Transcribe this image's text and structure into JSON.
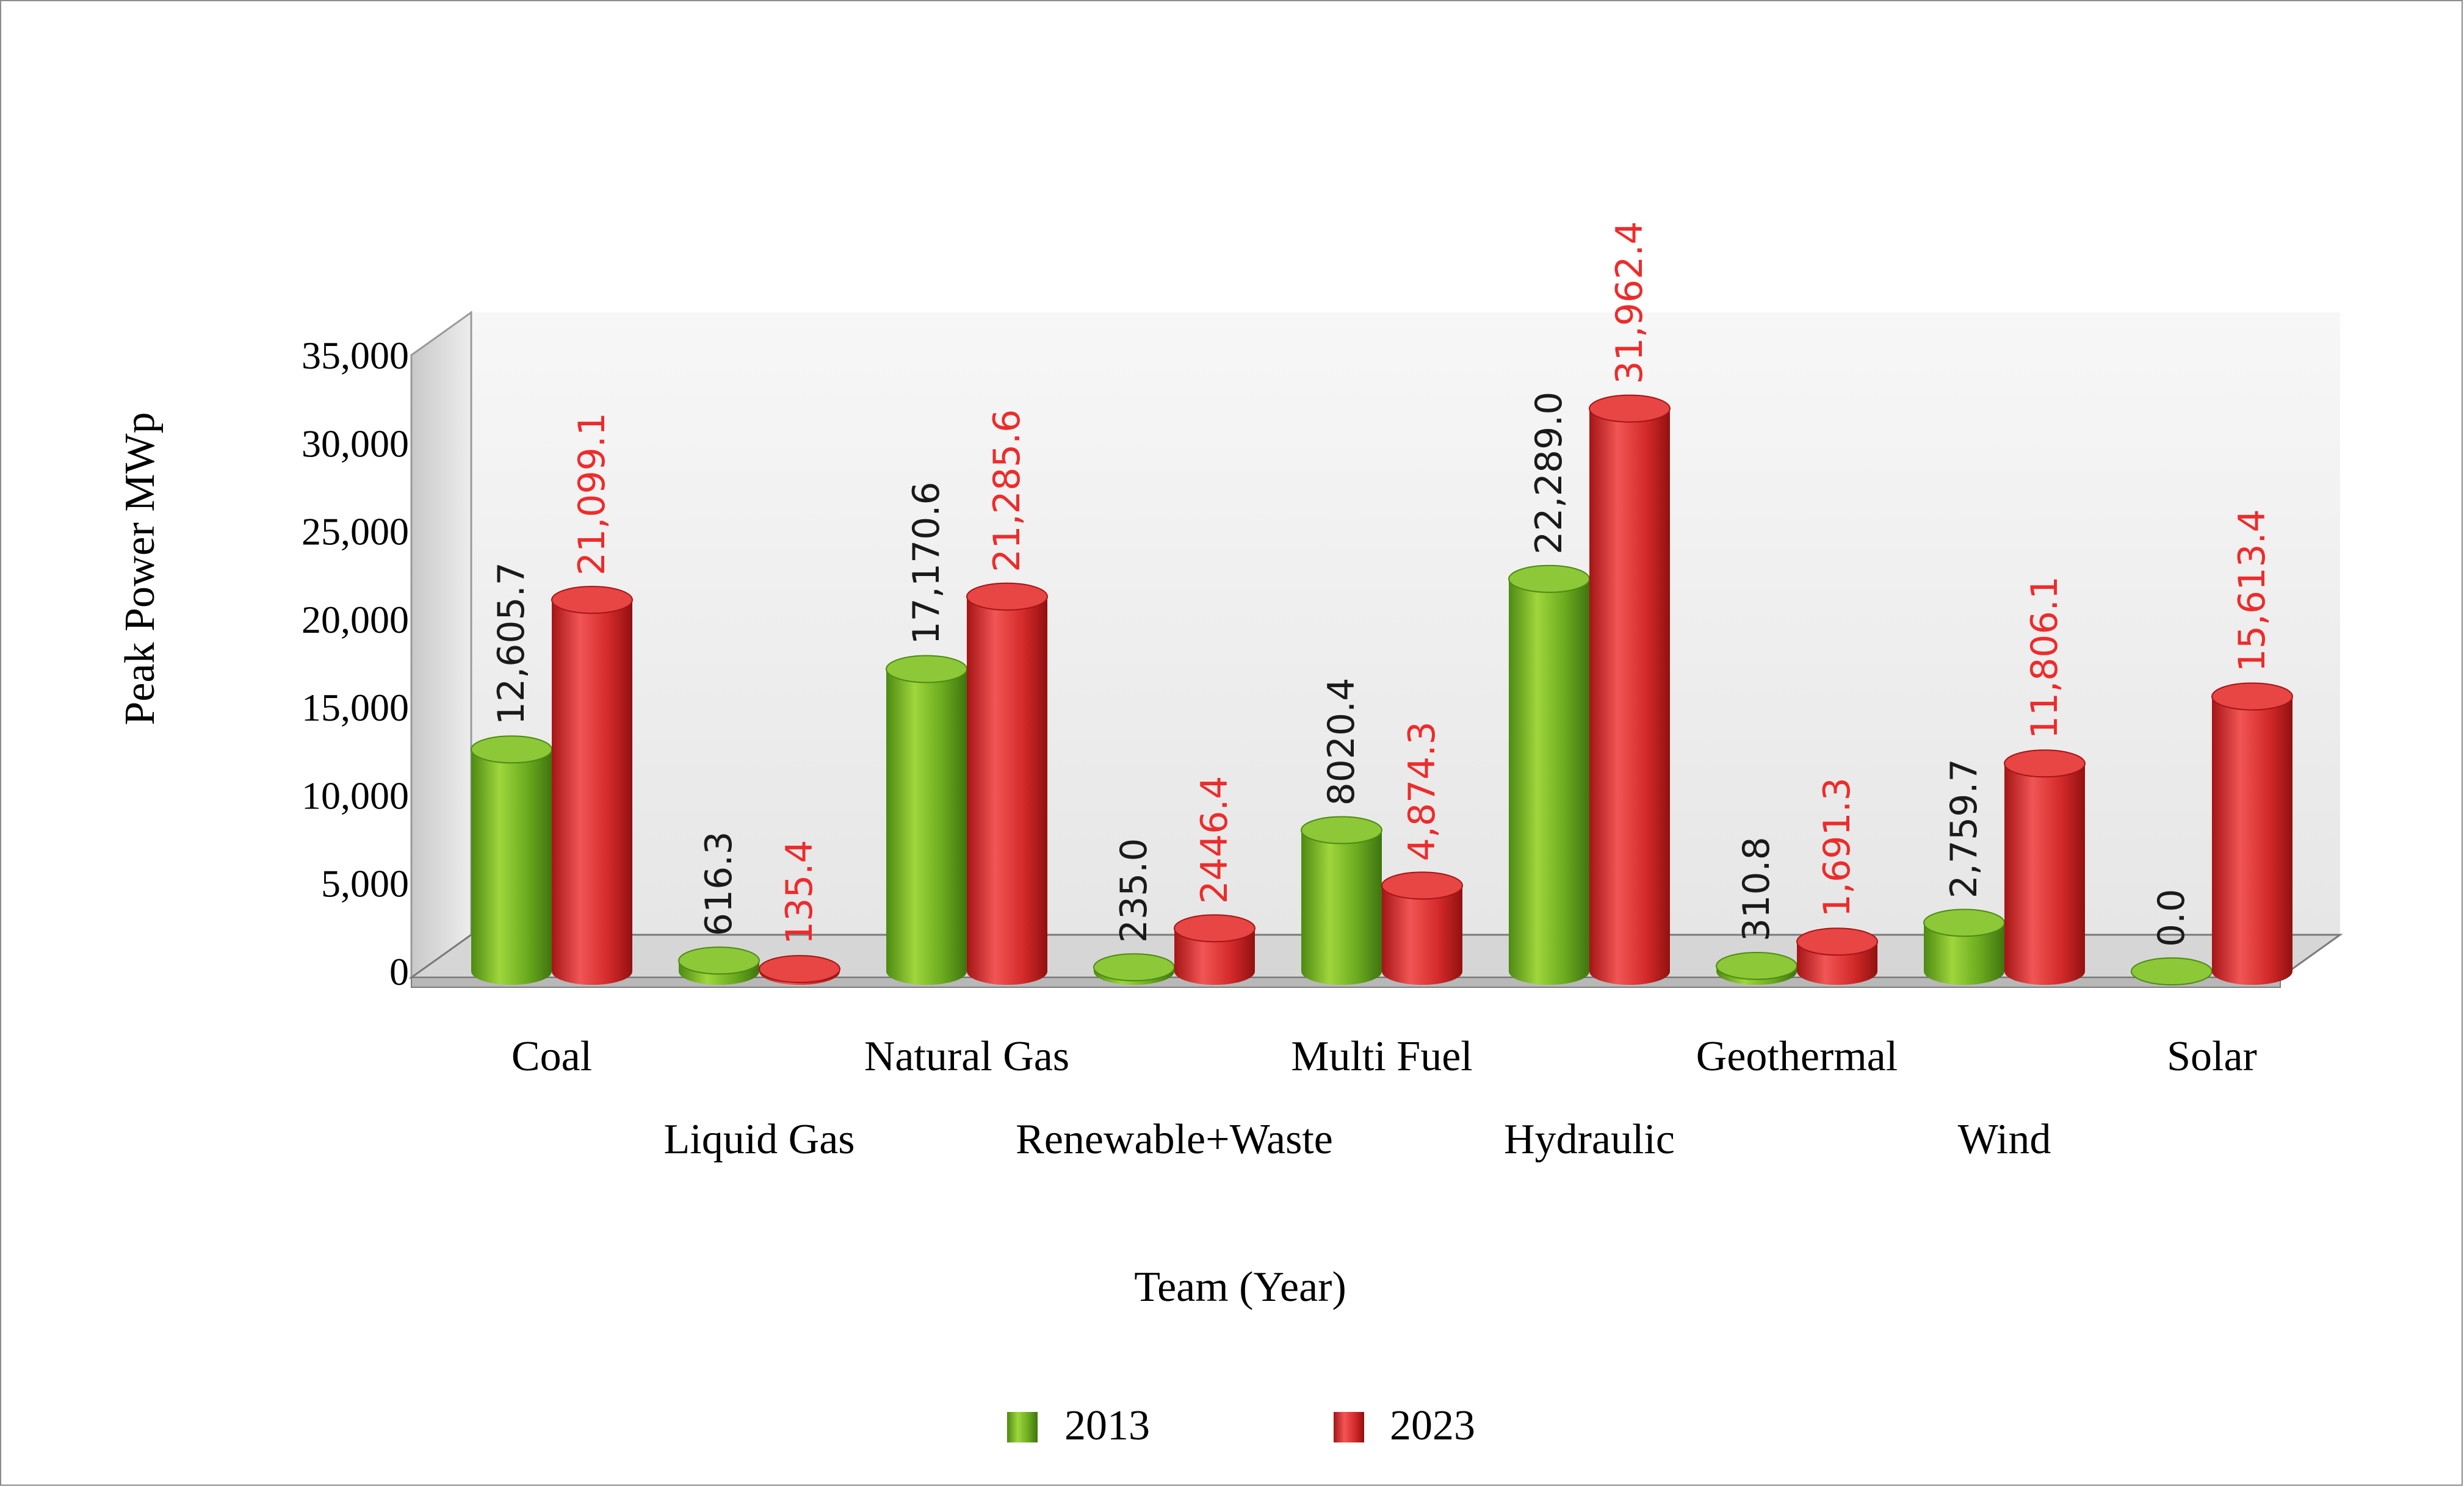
{
  "chart_data": {
    "type": "bar",
    "title": "",
    "ylabel": "Peak Power MWp",
    "xlabel": "Team (Year)",
    "ylim": [
      0,
      35000
    ],
    "yticks": [
      0,
      5000,
      10000,
      15000,
      20000,
      25000,
      30000,
      35000
    ],
    "ytick_labels": [
      "0",
      "5,000",
      "10,000",
      "15,000",
      "20,000",
      "25,000",
      "30,000",
      "35,000"
    ],
    "categories": [
      "Coal",
      "Liquid Gas",
      "Natural Gas",
      "Renewable+Waste",
      "Multi Fuel",
      "Hydraulic",
      "Geothermal",
      "Wind",
      "Solar"
    ],
    "series": [
      {
        "name": "2013",
        "color": "#6aaa1e",
        "label_color": "#1a1a1a",
        "values": [
          12605.7,
          616.3,
          17170.6,
          235.0,
          8020.4,
          22289.0,
          310.8,
          2759.7,
          0.0
        ],
        "labels": [
          "12,605.7",
          "616.3",
          "17,170.6",
          "235.0",
          "8020.4",
          "22,289.0",
          "310.8",
          "2,759.7",
          "0.0"
        ]
      },
      {
        "name": "2023",
        "color": "#d42a2a",
        "label_color": "#ee2b2b",
        "values": [
          21099.1,
          135.4,
          21285.6,
          2446.4,
          4874.3,
          31962.4,
          1691.3,
          11806.1,
          15613.4
        ],
        "labels": [
          "21,099.1",
          "135.4",
          "21,285.6",
          "2446.4",
          "4,874.3",
          "31,962.4",
          "1,691.3",
          "11,806.1",
          "15,613.4"
        ]
      }
    ],
    "legend": {
      "position": "bottom",
      "labels": [
        "2013",
        "2023"
      ]
    },
    "grid": false,
    "style": "3d-cylinder"
  }
}
